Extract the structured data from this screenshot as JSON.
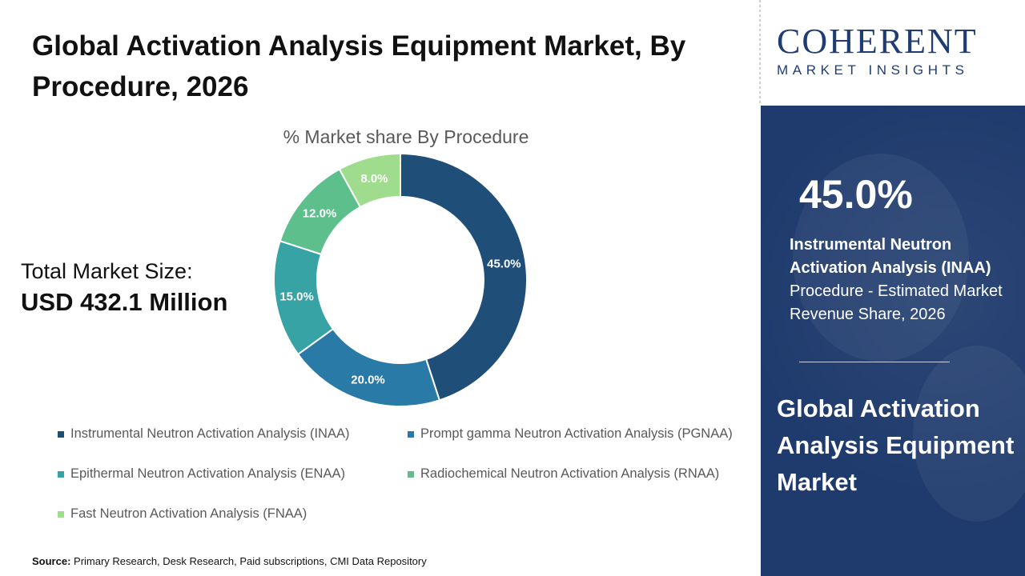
{
  "header": {
    "title": "Global Activation Analysis Equipment Market, By Procedure, 2026"
  },
  "total": {
    "label": "Total Market Size:",
    "value": "USD 432.1 Million"
  },
  "source": {
    "label": "Source:",
    "text": "Primary Research, Desk Research, Paid subscriptions, CMI Data Repository"
  },
  "logo": {
    "word": "COHERENT",
    "sub": "MARKET INSIGHTS"
  },
  "sidebar": {
    "highlight_value": "45.0%",
    "highlight_segment": "Instrumental Neutron Activation Analysis (INAA)",
    "highlight_text": "Procedure - Estimated Market Revenue Share, 2026",
    "title": "Global Activation Analysis Equipment Market"
  },
  "colors": {
    "panel": "#1f3b6d",
    "brand": "#1f3c73"
  },
  "chart_data": {
    "type": "pie",
    "subtype": "donut",
    "title": "% Market share By Procedure",
    "categories": [
      "Instrumental Neutron Activation Analysis (INAA)",
      "Prompt gamma Neutron Activation Analysis (PGNAA)",
      "Epithermal Neutron Activation Analysis (ENAA)",
      "Radiochemical Neutron Activation Analysis (RNAA)",
      "Fast Neutron Activation Analysis (FNAA)"
    ],
    "values": [
      45.0,
      20.0,
      15.0,
      12.0,
      8.0
    ],
    "labels": [
      "45.0%",
      "20.0%",
      "15.0%",
      "12.0%",
      "8.0%"
    ],
    "colors": [
      "#1f4e79",
      "#2a7aa8",
      "#37a3a5",
      "#5dbf8c",
      "#9fdc8e"
    ],
    "legend_position": "bottom"
  }
}
